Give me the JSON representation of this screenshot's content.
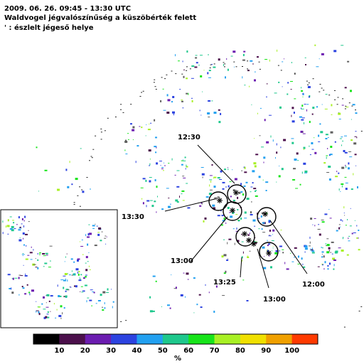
{
  "title": {
    "line1": "2009. 06. 26. 09:45 - 13:30 UTC",
    "line2": "Waldvogel jégvalószínűség a küszöbérték felett",
    "line3": "' : észlelt jégeső helye"
  },
  "hail_reports": {
    "count": 8,
    "time_labels": [
      "12:30",
      "13:30",
      "13:00",
      "13:25",
      "13:00",
      "12:00"
    ]
  },
  "colorbar": {
    "unit": "%",
    "ticks": [
      "10",
      "20",
      "30",
      "40",
      "50",
      "60",
      "70",
      "80",
      "90",
      "100"
    ],
    "colors": [
      "#000000",
      "#4b0f4b",
      "#6b1cb0",
      "#2c43e0",
      "#22a0f0",
      "#1ec88c",
      "#17e41a",
      "#a8f024",
      "#f0e000",
      "#f0a000",
      "#ff3a00"
    ]
  }
}
